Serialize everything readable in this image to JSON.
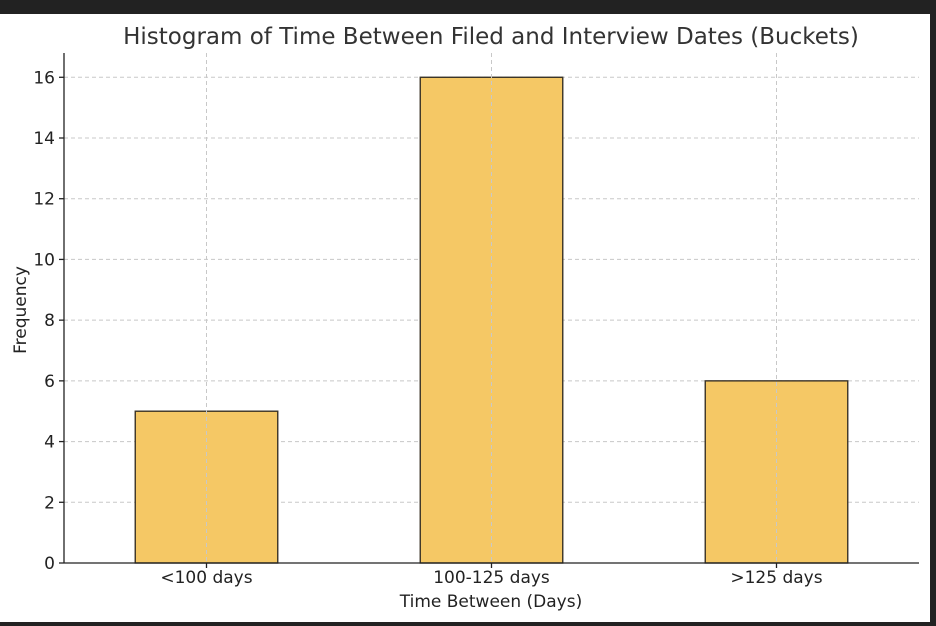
{
  "chart_data": {
    "type": "bar",
    "title": "Histogram of Time Between Filed and Interview Dates (Buckets)",
    "xlabel": "Time Between (Days)",
    "ylabel": "Frequency",
    "categories": [
      "<100 days",
      "100-125 days",
      ">125 days"
    ],
    "values": [
      5,
      16,
      6
    ],
    "ylim": [
      0,
      16.8
    ],
    "yticks": [
      0,
      2,
      4,
      6,
      8,
      10,
      12,
      14,
      16
    ],
    "grid": true,
    "bar_color": "#f5c865",
    "edge_color": "#3a3326"
  }
}
